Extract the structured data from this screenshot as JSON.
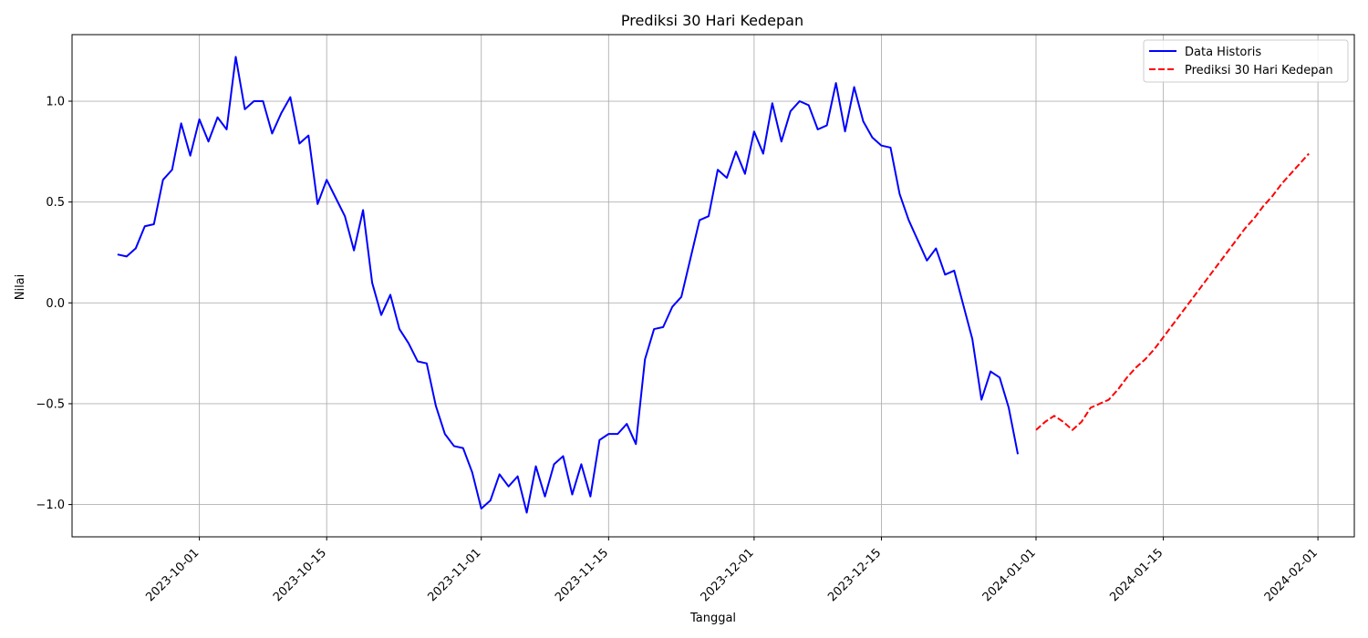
{
  "chart_data": {
    "type": "line",
    "title": "Prediksi 30 Hari Kedepan",
    "xlabel": "Tanggal",
    "ylabel": "Nilai",
    "ylim": [
      -1.16,
      1.33
    ],
    "xlim": [
      "2023-09-17",
      "2024-02-05"
    ],
    "x_ticks": [
      "2023-10-01",
      "2023-10-15",
      "2023-11-01",
      "2023-11-15",
      "2023-12-01",
      "2023-12-15",
      "2024-01-01",
      "2024-01-15",
      "2024-02-01"
    ],
    "y_ticks": [
      -1.0,
      -0.5,
      0.0,
      0.5,
      1.0
    ],
    "y_tick_labels": [
      "−1.0",
      "−0.5",
      "0.0",
      "0.5",
      "1.0"
    ],
    "grid": true,
    "legend_position": "top-right",
    "colors": {
      "historical": "#0000ff",
      "forecast": "#ff0000",
      "grid": "#b0b0b0"
    },
    "series": [
      {
        "name": "Data Historis",
        "style": "solid",
        "color": "#0000ff",
        "start_date": "2023-09-22",
        "values": [
          0.24,
          0.23,
          0.27,
          0.38,
          0.39,
          0.61,
          0.66,
          0.89,
          0.73,
          0.91,
          0.8,
          0.92,
          0.86,
          1.22,
          0.96,
          1.0,
          1.0,
          0.84,
          0.94,
          1.02,
          0.79,
          0.83,
          0.49,
          0.61,
          0.52,
          0.43,
          0.26,
          0.46,
          0.1,
          -0.06,
          0.04,
          -0.13,
          -0.2,
          -0.29,
          -0.3,
          -0.51,
          -0.65,
          -0.71,
          -0.72,
          -0.84,
          -1.02,
          -0.98,
          -0.85,
          -0.91,
          -0.86,
          -1.04,
          -0.81,
          -0.96,
          -0.8,
          -0.76,
          -0.95,
          -0.8,
          -0.96,
          -0.68,
          -0.65,
          -0.65,
          -0.6,
          -0.7,
          -0.28,
          -0.13,
          -0.12,
          -0.02,
          0.03,
          0.22,
          0.41,
          0.43,
          0.66,
          0.62,
          0.75,
          0.64,
          0.85,
          0.74,
          0.99,
          0.8,
          0.95,
          1.0,
          0.98,
          0.86,
          0.88,
          1.09,
          0.85,
          1.07,
          0.9,
          0.82,
          0.78,
          0.77,
          0.54,
          0.41,
          0.31,
          0.21,
          0.27,
          0.14,
          0.16,
          -0.01,
          -0.18,
          -0.48,
          -0.34,
          -0.37,
          -0.52,
          -0.75
        ]
      },
      {
        "name": "Prediksi 30 Hari Kedepan",
        "style": "dashed",
        "color": "#ff0000",
        "start_date": "2024-01-01",
        "values": [
          -0.63,
          -0.59,
          -0.56,
          -0.59,
          -0.63,
          -0.59,
          -0.52,
          -0.5,
          -0.48,
          -0.43,
          -0.37,
          -0.32,
          -0.28,
          -0.23,
          -0.17,
          -0.11,
          -0.05,
          0.01,
          0.07,
          0.13,
          0.19,
          0.25,
          0.31,
          0.37,
          0.42,
          0.48,
          0.53,
          0.59,
          0.64,
          0.69,
          0.74
        ]
      }
    ]
  }
}
